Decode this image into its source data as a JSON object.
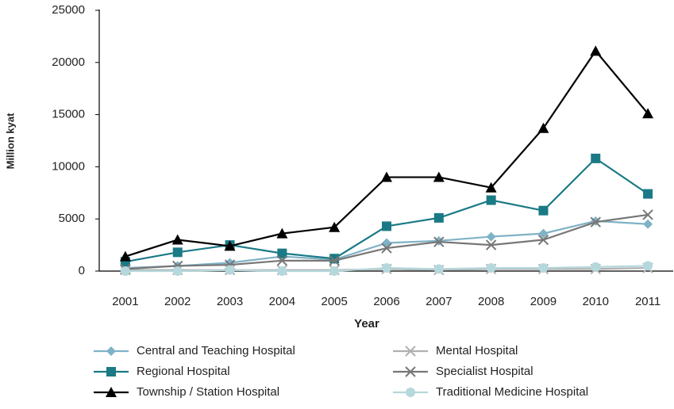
{
  "chart_data": {
    "type": "line",
    "y_label": "Million kyat",
    "x_label": "Year",
    "categories": [
      "2001",
      "2002",
      "2003",
      "2004",
      "2005",
      "2006",
      "2007",
      "2008",
      "2009",
      "2010",
      "2011"
    ],
    "series": [
      {
        "name": "Central and Teaching Hospital",
        "color": "#7fb2c6",
        "marker": "diamond",
        "values": [
          300,
          500,
          800,
          1400,
          1100,
          2700,
          2900,
          3300,
          3600,
          4800,
          4500
        ]
      },
      {
        "name": "Mental Hospital",
        "color": "#b0b0b0",
        "marker": "x",
        "values": [
          100,
          100,
          100,
          100,
          100,
          200,
          100,
          200,
          200,
          200,
          300
        ]
      },
      {
        "name": "Regional Hospital",
        "color": "#1a7a85",
        "marker": "square",
        "values": [
          900,
          1800,
          2500,
          1700,
          1200,
          4300,
          5100,
          6800,
          5800,
          10800,
          7400
        ]
      },
      {
        "name": "Specialist Hospital",
        "color": "#777777",
        "marker": "x",
        "values": [
          200,
          500,
          600,
          1000,
          1000,
          2200,
          2800,
          2500,
          3000,
          4700,
          5400
        ]
      },
      {
        "name": "Township / Station Hospital",
        "color": "#000000",
        "marker": "triangle",
        "values": [
          1400,
          3000,
          2400,
          3600,
          4200,
          9000,
          9000,
          8000,
          13700,
          21100,
          15100
        ]
      },
      {
        "name": "Traditional Medicine Hospital",
        "color": "#b5d8dc",
        "marker": "circle",
        "values": [
          0,
          0,
          100,
          0,
          0,
          300,
          200,
          300,
          300,
          400,
          500
        ]
      }
    ],
    "ylim": [
      0,
      25000
    ],
    "yticks": [
      0,
      5000,
      10000,
      15000,
      20000,
      25000
    ],
    "grid": false
  }
}
